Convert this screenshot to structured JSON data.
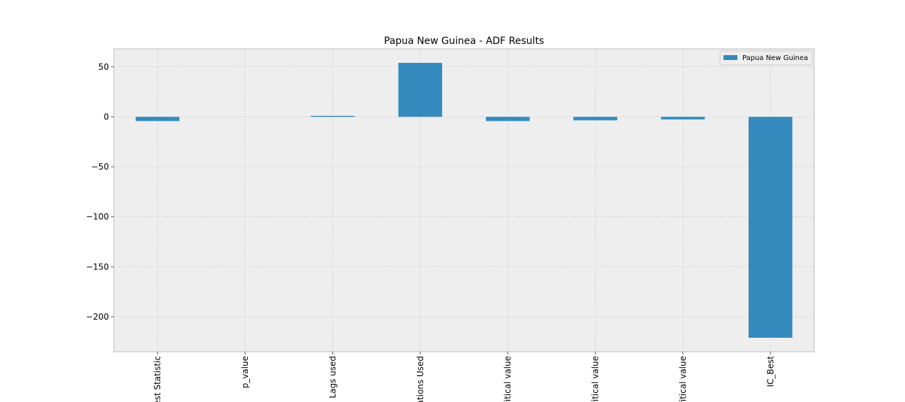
{
  "chart_data": {
    "type": "bar",
    "title": "Papua New Guinea - ADF Results",
    "categories": [
      "Test Statistic",
      "p_value",
      "Lags used",
      "Observations Used",
      "Critical value",
      "Critical value",
      "Critical value",
      "IC_Best"
    ],
    "category_labels_visible": [
      "est Statistic",
      "p_value",
      "Lags used",
      "ations Used",
      "ritical value",
      "ritical value",
      "ritical value",
      "IC_Best"
    ],
    "series": [
      {
        "name": "Papua New Guinea",
        "values": [
          -4.2,
          0.0,
          1.0,
          54.0,
          -4.2,
          -3.5,
          -2.6,
          -221.0
        ]
      }
    ],
    "ylim": [
      -235,
      68
    ],
    "yticks": [
      50,
      0,
      -50,
      -100,
      -150,
      -200
    ],
    "ytick_labels": [
      "50",
      "0",
      "−50",
      "−100",
      "−150",
      "−200"
    ],
    "xlabel": "",
    "ylabel": "",
    "grid": true,
    "legend_position": "top-right",
    "colors": {
      "bar": "#348abd",
      "plot_background": "#eeeeee",
      "grid": "#c8c8c8",
      "axis": "#bcbcbc"
    }
  }
}
